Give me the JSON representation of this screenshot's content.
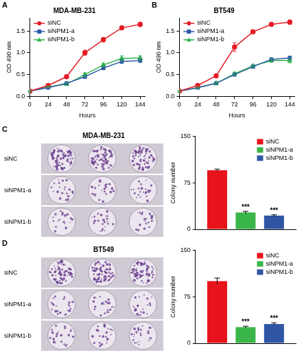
{
  "chart_data": [
    {
      "type": "line",
      "panel": "A",
      "title": "MDA-MB-231",
      "xlabel": "Hours",
      "ylabel": "OD 490 nm",
      "x": [
        0,
        24,
        48,
        72,
        96,
        120,
        144
      ],
      "xlim": [
        0,
        150
      ],
      "xticks": [
        0,
        24,
        48,
        72,
        96,
        120,
        144
      ],
      "ylim": [
        0,
        1.8
      ],
      "yticks": [
        {
          "value": 0,
          "label": "0.0"
        },
        0.5,
        {
          "value": 1,
          "label": "1.0"
        },
        1.5
      ],
      "grid": false,
      "legend": "upper left",
      "series": [
        {
          "name": "siNC",
          "color": "#e41e26",
          "marker": "circle",
          "values": [
            0.12,
            0.25,
            0.45,
            1.0,
            1.3,
            1.57,
            1.65
          ],
          "errors": [
            0.02,
            0.03,
            0.04,
            0.06,
            0.05,
            0.04,
            0.05
          ]
        },
        {
          "name": "siNPM1-a",
          "color": "#2e5aa7",
          "marker": "square",
          "values": [
            0.12,
            0.2,
            0.3,
            0.45,
            0.65,
            0.8,
            0.82
          ],
          "errors": [
            0.02,
            0.02,
            0.03,
            0.03,
            0.04,
            0.04,
            0.04
          ]
        },
        {
          "name": "siNPM1-b",
          "color": "#2db34a",
          "marker": "triangle",
          "values": [
            0.12,
            0.22,
            0.28,
            0.5,
            0.72,
            0.87,
            0.88
          ],
          "errors": [
            0.02,
            0.02,
            0.03,
            0.04,
            0.04,
            0.06,
            0.05
          ]
        }
      ]
    },
    {
      "type": "line",
      "panel": "B",
      "title": "BT549",
      "xlabel": "Hours",
      "ylabel": "OD 490 nm",
      "x": [
        0,
        24,
        48,
        72,
        96,
        120,
        144
      ],
      "xlim": [
        0,
        150
      ],
      "xticks": [
        0,
        24,
        48,
        72,
        96,
        120,
        144
      ],
      "ylim": [
        0,
        1.8
      ],
      "yticks": [
        {
          "value": 0,
          "label": "0.0"
        },
        0.5,
        {
          "value": 1,
          "label": "1.0"
        },
        1.5
      ],
      "grid": false,
      "legend": "upper left",
      "series": [
        {
          "name": "siNC",
          "color": "#e41e26",
          "marker": "circle",
          "values": [
            0.12,
            0.25,
            0.47,
            1.13,
            1.48,
            1.65,
            1.7
          ],
          "errors": [
            0.02,
            0.03,
            0.03,
            0.1,
            0.04,
            0.04,
            0.05
          ]
        },
        {
          "name": "siNPM1-a",
          "color": "#2e5aa7",
          "marker": "square",
          "values": [
            0.12,
            0.2,
            0.3,
            0.5,
            0.68,
            0.85,
            0.88
          ],
          "errors": [
            0.02,
            0.02,
            0.03,
            0.03,
            0.03,
            0.03,
            0.04
          ]
        },
        {
          "name": "siNPM1-b",
          "color": "#2db34a",
          "marker": "triangle",
          "values": [
            0.12,
            0.2,
            0.3,
            0.52,
            0.7,
            0.82,
            0.82
          ],
          "errors": [
            0.02,
            0.02,
            0.03,
            0.03,
            0.03,
            0.04,
            0.05
          ]
        }
      ]
    },
    {
      "type": "bar",
      "ylabel": "Colony number",
      "categories": [
        null
      ],
      "ylim": [
        0,
        150
      ],
      "yticks": [
        0,
        75,
        150
      ],
      "grid": false,
      "legend": "upper right",
      "tick_labels": "y",
      "series": [
        {
          "name": "siNC",
          "color": "#e8141b",
          "values": [
            95
          ],
          "errors": [
            2
          ]
        },
        {
          "name": "siNPM1-a",
          "color": "#3ab54a",
          "values": [
            27
          ],
          "errors": [
            2
          ],
          "annotation": "***"
        },
        {
          "name": "siNPM1-b",
          "color": "#2f55a4",
          "values": [
            22
          ],
          "errors": [
            1.5
          ],
          "annotation": "***"
        }
      ]
    },
    {
      "type": "bar",
      "ylabel": "Colony number",
      "categories": [
        null
      ],
      "ylim": [
        0,
        150
      ],
      "yticks": [
        0,
        75,
        150
      ],
      "grid": false,
      "legend": "upper right",
      "tick_labels": "y",
      "series": [
        {
          "name": "siNC",
          "color": "#e8141b",
          "values": [
            100
          ],
          "errors": [
            5
          ]
        },
        {
          "name": "siNPM1-a",
          "color": "#3ab54a",
          "values": [
            26
          ],
          "errors": [
            1.5
          ],
          "annotation": "***"
        },
        {
          "name": "siNPM1-b",
          "color": "#2f55a4",
          "values": [
            31
          ],
          "errors": [
            2
          ],
          "annotation": "***"
        }
      ]
    }
  ],
  "images": [
    {
      "panel": "C",
      "title": "MDA-MB-231",
      "rows": [
        "siNC",
        "siNPM1-a",
        "siNPM1-b"
      ]
    },
    {
      "panel": "D",
      "title": "BT549",
      "rows": [
        "siNC",
        "siNPM1-a",
        "siNPM1-b"
      ]
    }
  ]
}
